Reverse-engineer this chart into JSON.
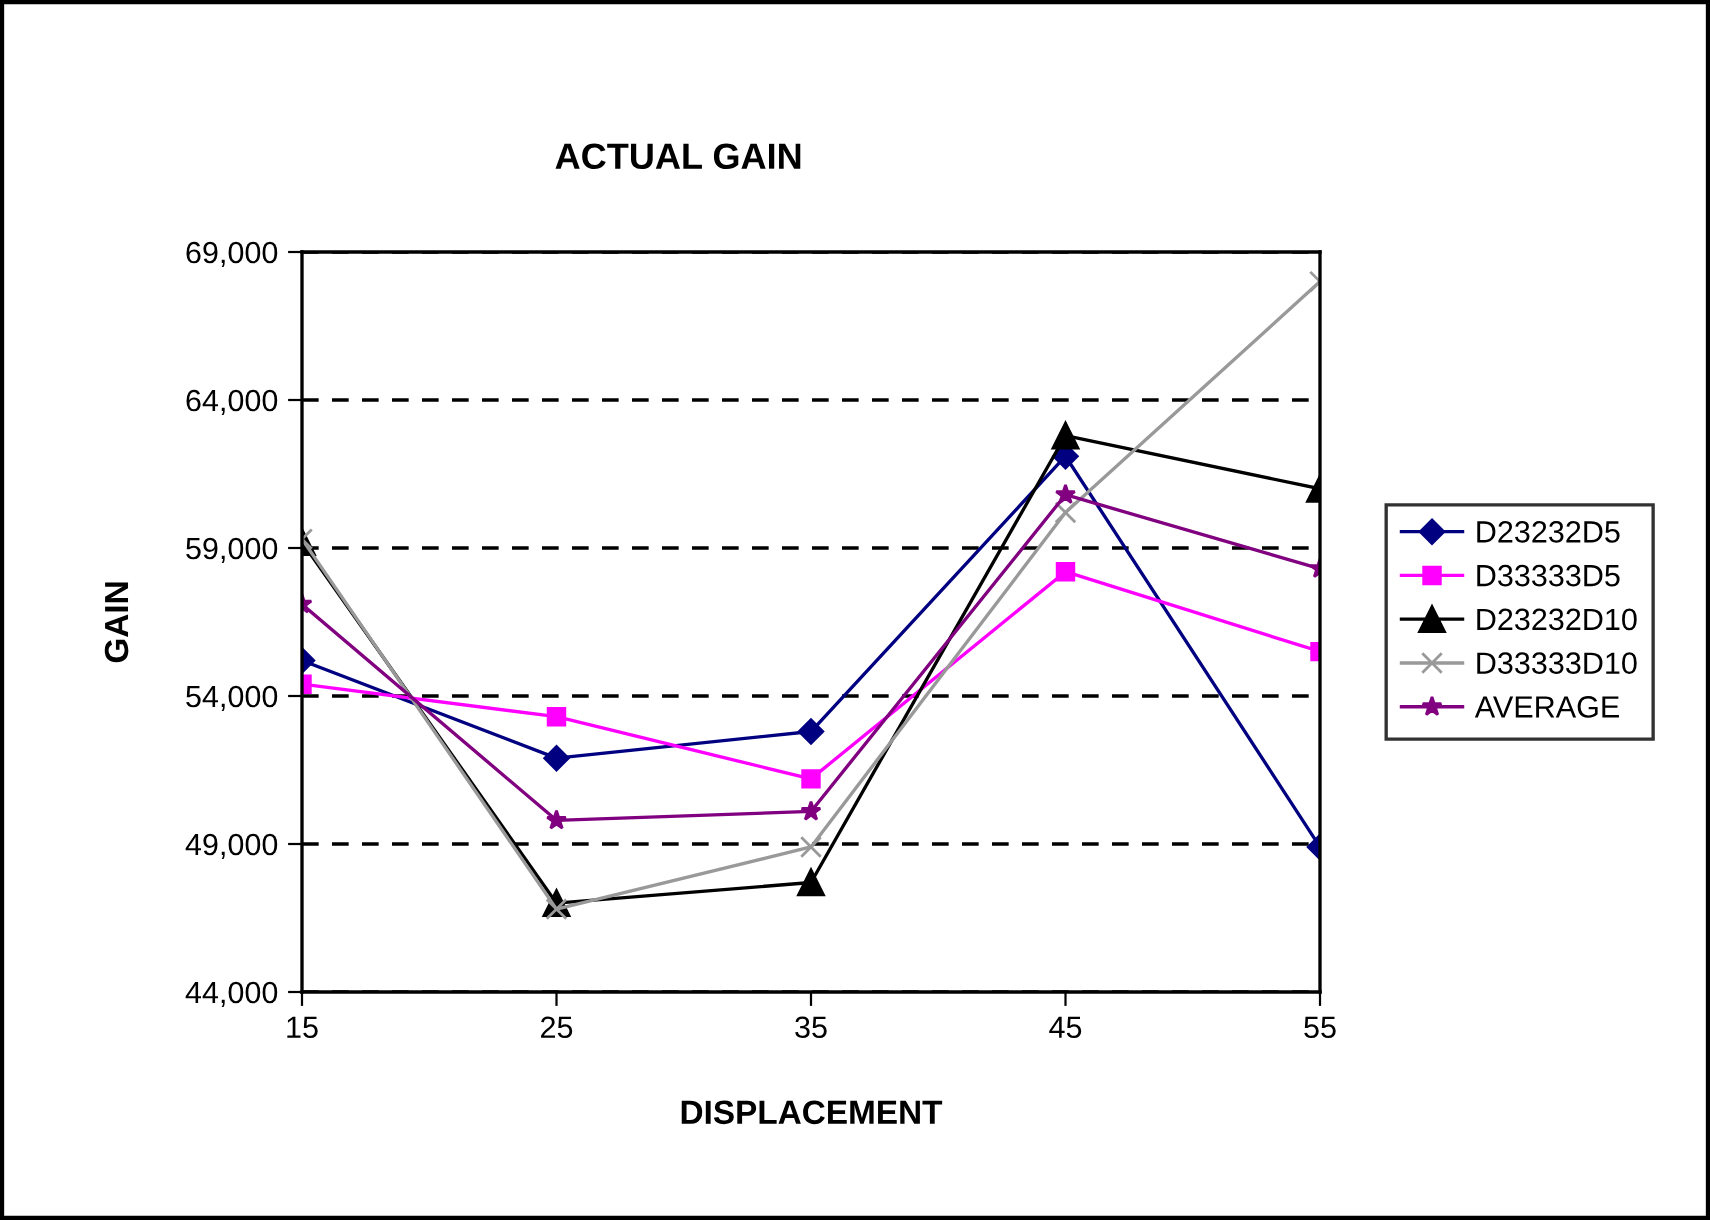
{
  "chart_data": {
    "type": "line",
    "title": "ACTUAL GAIN",
    "xlabel": "DISPLACEMENT",
    "ylabel": "GAIN",
    "x": [
      15,
      25,
      35,
      45,
      55
    ],
    "series": [
      {
        "name": "D23232D5",
        "color": "#000080",
        "marker": "diamond",
        "values": [
          55200,
          51900,
          52800,
          62100,
          48900
        ]
      },
      {
        "name": "D33333D5",
        "color": "#ff00ff",
        "marker": "square",
        "values": [
          54400,
          53300,
          51200,
          58200,
          55500
        ]
      },
      {
        "name": "D23232D10",
        "color": "#000000",
        "marker": "triangle",
        "values": [
          59200,
          47000,
          47700,
          62800,
          61000
        ]
      },
      {
        "name": "D33333D10",
        "color": "#999999",
        "marker": "cross",
        "values": [
          59300,
          46800,
          48900,
          60200,
          68000
        ]
      },
      {
        "name": "AVERAGE",
        "color": "#800080",
        "marker": "star",
        "values": [
          57100,
          49800,
          50100,
          60800,
          58300
        ]
      }
    ],
    "xlim": [
      15,
      55
    ],
    "xticks": [
      15,
      25,
      35,
      45,
      55
    ],
    "ylim": [
      44000,
      69000
    ],
    "yticks": [
      {
        "value": 44000,
        "label": "44,000"
      },
      {
        "value": 49000,
        "label": "49,000"
      },
      {
        "value": 54000,
        "label": "54,000"
      },
      {
        "value": 59000,
        "label": "59,000"
      },
      {
        "value": 64000,
        "label": "64,000"
      },
      {
        "value": 69000,
        "label": "69,000"
      }
    ],
    "grid": "y",
    "legend": "right",
    "line_style": "solid"
  }
}
